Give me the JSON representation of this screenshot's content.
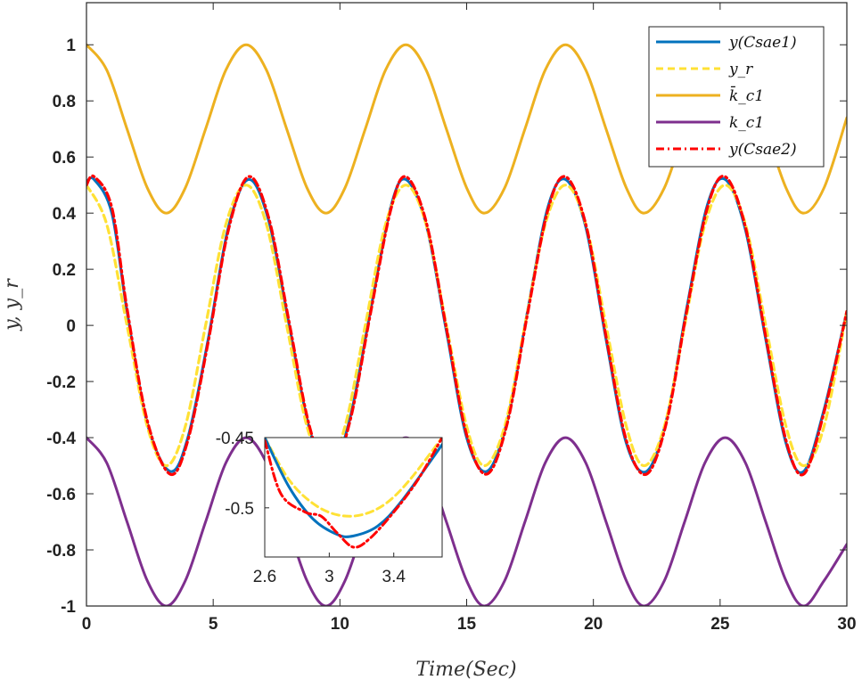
{
  "chart_data": [
    {
      "type": "line",
      "xlabel": "Time(Sec)",
      "ylabel": "y, y_r",
      "xlim": [
        0,
        30
      ],
      "ylim": [
        -1,
        1.15
      ],
      "xticks": [
        0,
        5,
        10,
        15,
        20,
        25,
        30
      ],
      "xtick_labels": [
        "0",
        "5",
        "10",
        "15",
        "20",
        "25",
        "30"
      ],
      "yticks": [
        -1,
        -0.8,
        -0.6,
        -0.4,
        -0.2,
        0,
        0.2,
        0.4,
        0.6,
        0.8,
        1
      ],
      "ytick_labels": [
        "-1",
        "-0.8",
        "-0.6",
        "-0.4",
        "-0.2",
        "0",
        "0.2",
        "0.4",
        "0.6",
        "0.8",
        "1"
      ],
      "grid": false,
      "legend_position": "top-right",
      "series": [
        {
          "name": "y(Csae1)",
          "color": "#0072BD",
          "dash": "solid",
          "x": [
            0,
            0.3,
            1,
            1.6,
            2.4,
            3.3,
            4,
            4.8,
            5.6,
            6.4,
            7.2,
            8,
            8.8,
            9.6,
            10.4,
            11.2,
            12,
            12.6,
            13.4,
            14.2,
            15,
            15.8,
            16.6,
            17.4,
            18.2,
            18.9,
            19.7,
            20.5,
            21.3,
            22.1,
            22.9,
            23.7,
            24.5,
            25.2,
            26,
            26.8,
            27.6,
            28.3,
            29.1,
            30
          ],
          "y": [
            0.51,
            0.52,
            0.4,
            0.05,
            -0.35,
            -0.52,
            -0.4,
            -0.05,
            0.35,
            0.52,
            0.37,
            0.0,
            -0.37,
            -0.52,
            -0.33,
            0.05,
            0.42,
            0.52,
            0.36,
            -0.02,
            -0.4,
            -0.52,
            -0.34,
            0.05,
            0.42,
            0.52,
            0.35,
            -0.05,
            -0.42,
            -0.52,
            -0.33,
            0.07,
            0.43,
            0.52,
            0.34,
            -0.05,
            -0.42,
            -0.52,
            -0.3,
            0.05
          ]
        },
        {
          "name": "y_r",
          "color": "#FFE135",
          "dash": "dashed",
          "x": [
            0,
            0.8,
            1.6,
            2.4,
            3.15,
            3.9,
            4.7,
            5.5,
            6.3,
            7.1,
            7.9,
            8.7,
            9.45,
            10.2,
            11,
            11.8,
            12.6,
            13.4,
            14.2,
            15,
            15.7,
            16.5,
            17.3,
            18.1,
            18.9,
            19.7,
            20.5,
            21.3,
            22,
            22.8,
            23.6,
            24.4,
            25.2,
            26,
            26.8,
            27.6,
            28.3,
            29.1,
            30
          ],
          "y": [
            0.5,
            0.36,
            0.0,
            -0.36,
            -0.5,
            -0.36,
            0.0,
            0.36,
            0.5,
            0.36,
            0.0,
            -0.36,
            -0.5,
            -0.36,
            0.0,
            0.36,
            0.5,
            0.36,
            0.0,
            -0.36,
            -0.5,
            -0.36,
            0.0,
            0.36,
            0.5,
            0.36,
            0.0,
            -0.36,
            -0.5,
            -0.36,
            0.0,
            0.36,
            0.5,
            0.36,
            0.0,
            -0.36,
            -0.5,
            -0.36,
            0.05
          ]
        },
        {
          "name": "k̄_c1",
          "color": "#EDB120",
          "dash": "solid",
          "x": [
            0,
            0.8,
            1.6,
            2.4,
            3.15,
            3.9,
            4.7,
            5.5,
            6.3,
            7.1,
            7.9,
            8.7,
            9.45,
            10.2,
            11,
            11.8,
            12.6,
            13.4,
            14.2,
            15,
            15.7,
            16.5,
            17.3,
            18.1,
            18.9,
            19.7,
            20.5,
            21.3,
            22,
            22.8,
            23.6,
            24.4,
            25.2,
            26,
            26.8,
            27.6,
            28.3,
            29.1,
            30
          ],
          "y": [
            1.0,
            0.91,
            0.7,
            0.49,
            0.4,
            0.49,
            0.7,
            0.91,
            1.0,
            0.91,
            0.7,
            0.49,
            0.4,
            0.49,
            0.7,
            0.91,
            1.0,
            0.91,
            0.7,
            0.49,
            0.4,
            0.49,
            0.7,
            0.91,
            1.0,
            0.91,
            0.7,
            0.49,
            0.4,
            0.49,
            0.7,
            0.91,
            1.0,
            0.91,
            0.7,
            0.49,
            0.4,
            0.49,
            0.74
          ]
        },
        {
          "name": "k_c1",
          "color": "#7E2F8E",
          "dash": "solid",
          "x": [
            0,
            0.8,
            1.6,
            2.4,
            3.15,
            3.9,
            4.7,
            5.5,
            6.3,
            7.1,
            7.9,
            8.7,
            9.45,
            10.2,
            11,
            11.8,
            12.6,
            13.4,
            14.2,
            15,
            15.7,
            16.5,
            17.3,
            18.1,
            18.9,
            19.7,
            20.5,
            21.3,
            22,
            22.8,
            23.6,
            24.4,
            25.2,
            26,
            26.8,
            27.6,
            28.3,
            29.1,
            30
          ],
          "y": [
            -0.4,
            -0.49,
            -0.7,
            -0.91,
            -1.0,
            -0.91,
            -0.7,
            -0.49,
            -0.4,
            -0.49,
            -0.7,
            -0.91,
            -1.0,
            -0.91,
            -0.7,
            -0.49,
            -0.4,
            -0.49,
            -0.7,
            -0.91,
            -1.0,
            -0.91,
            -0.7,
            -0.49,
            -0.4,
            -0.49,
            -0.7,
            -0.91,
            -1.0,
            -0.91,
            -0.7,
            -0.49,
            -0.4,
            -0.49,
            -0.7,
            -0.91,
            -1.0,
            -0.91,
            -0.78
          ]
        },
        {
          "name": "y(Csae2)",
          "color": "#FF0000",
          "dash": "dashdot",
          "x": [
            0,
            0.3,
            1,
            1.6,
            2.4,
            3.3,
            4,
            4.8,
            5.6,
            6.4,
            7.2,
            8,
            8.8,
            9.6,
            10.4,
            11.2,
            12,
            12.6,
            13.4,
            14.2,
            15,
            15.8,
            16.6,
            17.4,
            18.2,
            18.9,
            19.7,
            20.5,
            21.3,
            22.1,
            22.9,
            23.7,
            24.5,
            25.2,
            26,
            26.8,
            27.6,
            28.3,
            29.1,
            30
          ],
          "y": [
            0.5,
            0.53,
            0.42,
            0.06,
            -0.34,
            -0.53,
            -0.41,
            -0.06,
            0.34,
            0.53,
            0.38,
            0.01,
            -0.36,
            -0.53,
            -0.34,
            0.04,
            0.41,
            0.53,
            0.37,
            -0.01,
            -0.39,
            -0.53,
            -0.35,
            0.04,
            0.41,
            0.53,
            0.36,
            -0.04,
            -0.41,
            -0.53,
            -0.34,
            0.06,
            0.42,
            0.53,
            0.35,
            -0.04,
            -0.41,
            -0.53,
            -0.31,
            0.05
          ]
        }
      ]
    },
    {
      "type": "line",
      "inset": true,
      "xlim": [
        2.6,
        3.7
      ],
      "ylim": [
        -0.535,
        -0.45
      ],
      "xticks": [
        2.6,
        3,
        3.4
      ],
      "xtick_labels": [
        "2.6",
        "3",
        "3.4"
      ],
      "yticks": [
        -0.45,
        -0.5
      ],
      "ytick_labels": [
        "-0.45",
        "-0.5"
      ],
      "series": [
        {
          "ref": "y_r",
          "color": "#FFE135",
          "dash": "dashed",
          "x": [
            2.6,
            2.75,
            2.9,
            3.05,
            3.2,
            3.35,
            3.5,
            3.7
          ],
          "y": [
            -0.45,
            -0.48,
            -0.497,
            -0.505,
            -0.505,
            -0.497,
            -0.48,
            -0.45
          ]
        },
        {
          "ref": "y(Csae1)",
          "color": "#0072BD",
          "dash": "solid",
          "x": [
            2.6,
            2.75,
            2.9,
            3.05,
            3.15,
            3.3,
            3.45,
            3.7
          ],
          "y": [
            -0.45,
            -0.485,
            -0.508,
            -0.519,
            -0.52,
            -0.513,
            -0.495,
            -0.455
          ]
        },
        {
          "ref": "y(Csae2)",
          "color": "#FF0000",
          "dash": "dashdot",
          "x": [
            2.6,
            2.7,
            2.85,
            2.95,
            3.05,
            3.15,
            3.25,
            3.4,
            3.55,
            3.7
          ],
          "y": [
            -0.452,
            -0.49,
            -0.503,
            -0.506,
            -0.518,
            -0.528,
            -0.522,
            -0.503,
            -0.48,
            -0.45
          ]
        }
      ]
    }
  ]
}
